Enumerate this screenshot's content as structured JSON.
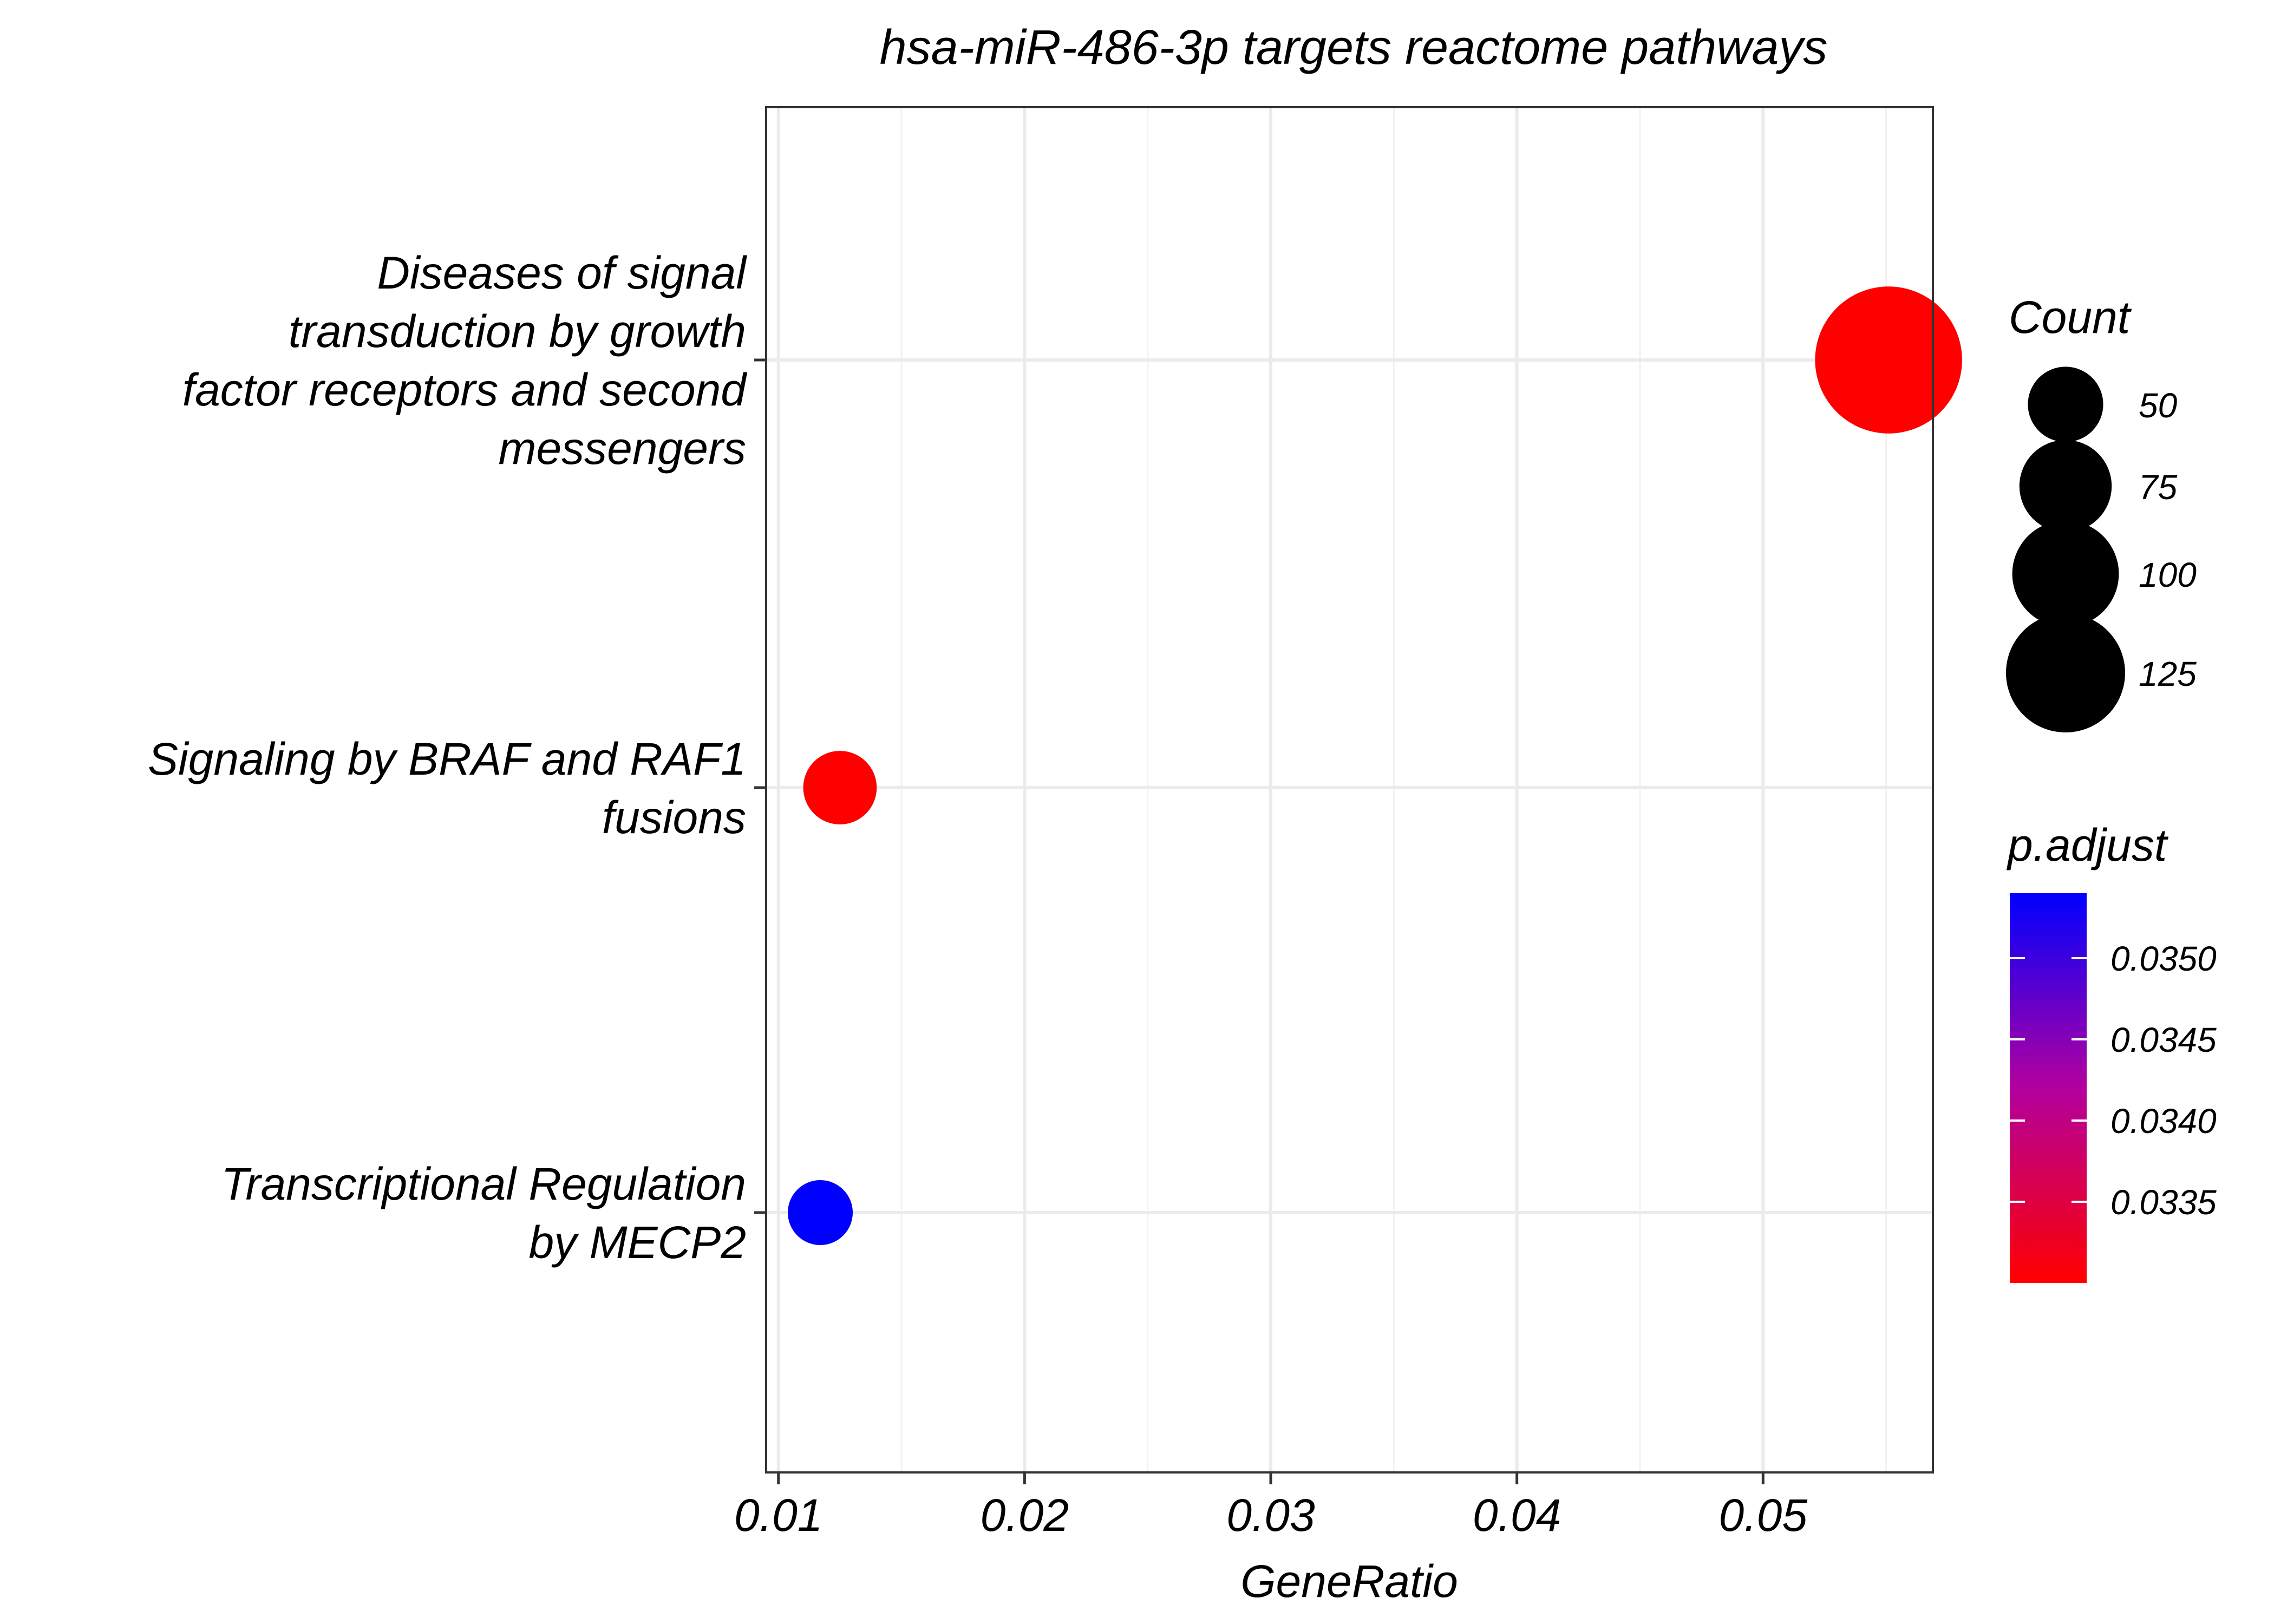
{
  "chart_data": {
    "type": "scatter",
    "title": "hsa-miR-486-3p targets reactome pathways",
    "xlabel": "GeneRatio",
    "ylabel": "",
    "xlim": [
      0.0095,
      0.0569
    ],
    "x_ticks": [
      0.01,
      0.02,
      0.03,
      0.04,
      0.05
    ],
    "x_tick_labels": [
      "0.01",
      "0.02",
      "0.03",
      "0.04",
      "0.05"
    ],
    "x_minor_ticks": [
      0.015,
      0.025,
      0.035,
      0.045,
      0.055
    ],
    "grid": true,
    "categories": [
      [
        "Diseases of signal",
        "transduction by growth",
        "factor receptors and second",
        "messengers"
      ],
      [
        "Signaling by BRAF and RAF1",
        "fusions"
      ],
      [
        "Transcriptional Regulation",
        "by MECP2"
      ]
    ],
    "points": [
      {
        "category_index": 0,
        "x": 0.0551,
        "count": 128,
        "p_adjust": 0.033
      },
      {
        "category_index": 1,
        "x": 0.0125,
        "count": 32,
        "p_adjust": 0.033
      },
      {
        "category_index": 2,
        "x": 0.0117,
        "count": 25,
        "p_adjust": 0.0354
      }
    ],
    "size_legend": {
      "title": "Count",
      "values": [
        50,
        75,
        100,
        125
      ],
      "labels": [
        "50",
        "75",
        "100",
        "125"
      ]
    },
    "color_legend": {
      "title": "p.adjust",
      "range": [
        0.033,
        0.0354
      ],
      "low_color": "#ff0000",
      "high_color": "#0000ff",
      "mid_color": "#b3009e",
      "ticks": [
        0.0335,
        0.034,
        0.0345,
        0.035
      ],
      "tick_labels": [
        "0.0335",
        "0.0340",
        "0.0345",
        "0.0350"
      ]
    },
    "legend_position": "right"
  }
}
